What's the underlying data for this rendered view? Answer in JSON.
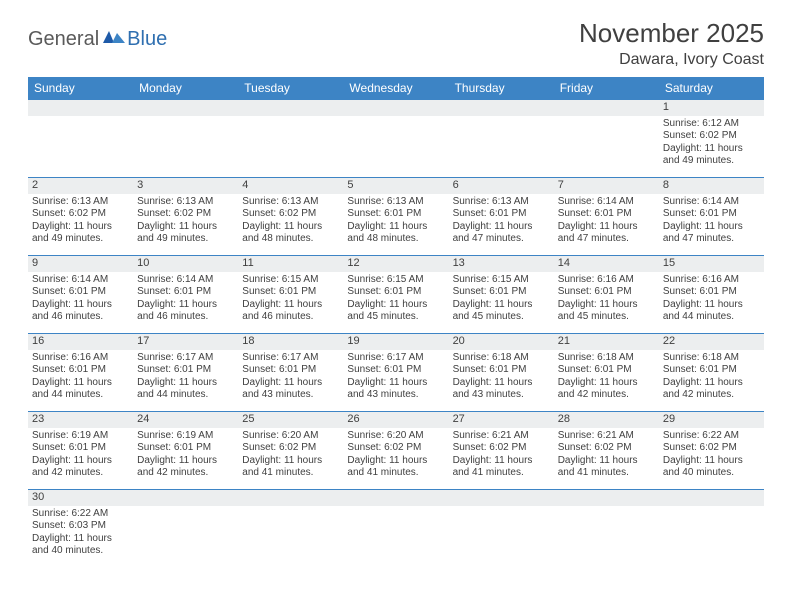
{
  "logo": {
    "general": "General",
    "blue": "Blue"
  },
  "title": "November 2025",
  "location": "Dawara, Ivory Coast",
  "colors": {
    "header_bg": "#3d84c5",
    "header_text": "#ffffff",
    "border": "#3d84c5",
    "daynum_bg": "#eceeef",
    "text": "#404040",
    "logo_gray": "#5a5a5a",
    "logo_blue": "#2f6fb0",
    "background": "#ffffff"
  },
  "typography": {
    "title_fontsize": 26,
    "location_fontsize": 16,
    "dayheader_fontsize": 12,
    "daynum_fontsize": 11,
    "detail_fontsize": 10
  },
  "day_headers": [
    "Sunday",
    "Monday",
    "Tuesday",
    "Wednesday",
    "Thursday",
    "Friday",
    "Saturday"
  ],
  "weeks": [
    [
      null,
      null,
      null,
      null,
      null,
      null,
      {
        "n": "1",
        "sunrise": "Sunrise: 6:12 AM",
        "sunset": "Sunset: 6:02 PM",
        "daylight": "Daylight: 11 hours and 49 minutes."
      }
    ],
    [
      {
        "n": "2",
        "sunrise": "Sunrise: 6:13 AM",
        "sunset": "Sunset: 6:02 PM",
        "daylight": "Daylight: 11 hours and 49 minutes."
      },
      {
        "n": "3",
        "sunrise": "Sunrise: 6:13 AM",
        "sunset": "Sunset: 6:02 PM",
        "daylight": "Daylight: 11 hours and 49 minutes."
      },
      {
        "n": "4",
        "sunrise": "Sunrise: 6:13 AM",
        "sunset": "Sunset: 6:02 PM",
        "daylight": "Daylight: 11 hours and 48 minutes."
      },
      {
        "n": "5",
        "sunrise": "Sunrise: 6:13 AM",
        "sunset": "Sunset: 6:01 PM",
        "daylight": "Daylight: 11 hours and 48 minutes."
      },
      {
        "n": "6",
        "sunrise": "Sunrise: 6:13 AM",
        "sunset": "Sunset: 6:01 PM",
        "daylight": "Daylight: 11 hours and 47 minutes."
      },
      {
        "n": "7",
        "sunrise": "Sunrise: 6:14 AM",
        "sunset": "Sunset: 6:01 PM",
        "daylight": "Daylight: 11 hours and 47 minutes."
      },
      {
        "n": "8",
        "sunrise": "Sunrise: 6:14 AM",
        "sunset": "Sunset: 6:01 PM",
        "daylight": "Daylight: 11 hours and 47 minutes."
      }
    ],
    [
      {
        "n": "9",
        "sunrise": "Sunrise: 6:14 AM",
        "sunset": "Sunset: 6:01 PM",
        "daylight": "Daylight: 11 hours and 46 minutes."
      },
      {
        "n": "10",
        "sunrise": "Sunrise: 6:14 AM",
        "sunset": "Sunset: 6:01 PM",
        "daylight": "Daylight: 11 hours and 46 minutes."
      },
      {
        "n": "11",
        "sunrise": "Sunrise: 6:15 AM",
        "sunset": "Sunset: 6:01 PM",
        "daylight": "Daylight: 11 hours and 46 minutes."
      },
      {
        "n": "12",
        "sunrise": "Sunrise: 6:15 AM",
        "sunset": "Sunset: 6:01 PM",
        "daylight": "Daylight: 11 hours and 45 minutes."
      },
      {
        "n": "13",
        "sunrise": "Sunrise: 6:15 AM",
        "sunset": "Sunset: 6:01 PM",
        "daylight": "Daylight: 11 hours and 45 minutes."
      },
      {
        "n": "14",
        "sunrise": "Sunrise: 6:16 AM",
        "sunset": "Sunset: 6:01 PM",
        "daylight": "Daylight: 11 hours and 45 minutes."
      },
      {
        "n": "15",
        "sunrise": "Sunrise: 6:16 AM",
        "sunset": "Sunset: 6:01 PM",
        "daylight": "Daylight: 11 hours and 44 minutes."
      }
    ],
    [
      {
        "n": "16",
        "sunrise": "Sunrise: 6:16 AM",
        "sunset": "Sunset: 6:01 PM",
        "daylight": "Daylight: 11 hours and 44 minutes."
      },
      {
        "n": "17",
        "sunrise": "Sunrise: 6:17 AM",
        "sunset": "Sunset: 6:01 PM",
        "daylight": "Daylight: 11 hours and 44 minutes."
      },
      {
        "n": "18",
        "sunrise": "Sunrise: 6:17 AM",
        "sunset": "Sunset: 6:01 PM",
        "daylight": "Daylight: 11 hours and 43 minutes."
      },
      {
        "n": "19",
        "sunrise": "Sunrise: 6:17 AM",
        "sunset": "Sunset: 6:01 PM",
        "daylight": "Daylight: 11 hours and 43 minutes."
      },
      {
        "n": "20",
        "sunrise": "Sunrise: 6:18 AM",
        "sunset": "Sunset: 6:01 PM",
        "daylight": "Daylight: 11 hours and 43 minutes."
      },
      {
        "n": "21",
        "sunrise": "Sunrise: 6:18 AM",
        "sunset": "Sunset: 6:01 PM",
        "daylight": "Daylight: 11 hours and 42 minutes."
      },
      {
        "n": "22",
        "sunrise": "Sunrise: 6:18 AM",
        "sunset": "Sunset: 6:01 PM",
        "daylight": "Daylight: 11 hours and 42 minutes."
      }
    ],
    [
      {
        "n": "23",
        "sunrise": "Sunrise: 6:19 AM",
        "sunset": "Sunset: 6:01 PM",
        "daylight": "Daylight: 11 hours and 42 minutes."
      },
      {
        "n": "24",
        "sunrise": "Sunrise: 6:19 AM",
        "sunset": "Sunset: 6:01 PM",
        "daylight": "Daylight: 11 hours and 42 minutes."
      },
      {
        "n": "25",
        "sunrise": "Sunrise: 6:20 AM",
        "sunset": "Sunset: 6:02 PM",
        "daylight": "Daylight: 11 hours and 41 minutes."
      },
      {
        "n": "26",
        "sunrise": "Sunrise: 6:20 AM",
        "sunset": "Sunset: 6:02 PM",
        "daylight": "Daylight: 11 hours and 41 minutes."
      },
      {
        "n": "27",
        "sunrise": "Sunrise: 6:21 AM",
        "sunset": "Sunset: 6:02 PM",
        "daylight": "Daylight: 11 hours and 41 minutes."
      },
      {
        "n": "28",
        "sunrise": "Sunrise: 6:21 AM",
        "sunset": "Sunset: 6:02 PM",
        "daylight": "Daylight: 11 hours and 41 minutes."
      },
      {
        "n": "29",
        "sunrise": "Sunrise: 6:22 AM",
        "sunset": "Sunset: 6:02 PM",
        "daylight": "Daylight: 11 hours and 40 minutes."
      }
    ],
    [
      {
        "n": "30",
        "sunrise": "Sunrise: 6:22 AM",
        "sunset": "Sunset: 6:03 PM",
        "daylight": "Daylight: 11 hours and 40 minutes."
      },
      null,
      null,
      null,
      null,
      null,
      null
    ]
  ]
}
